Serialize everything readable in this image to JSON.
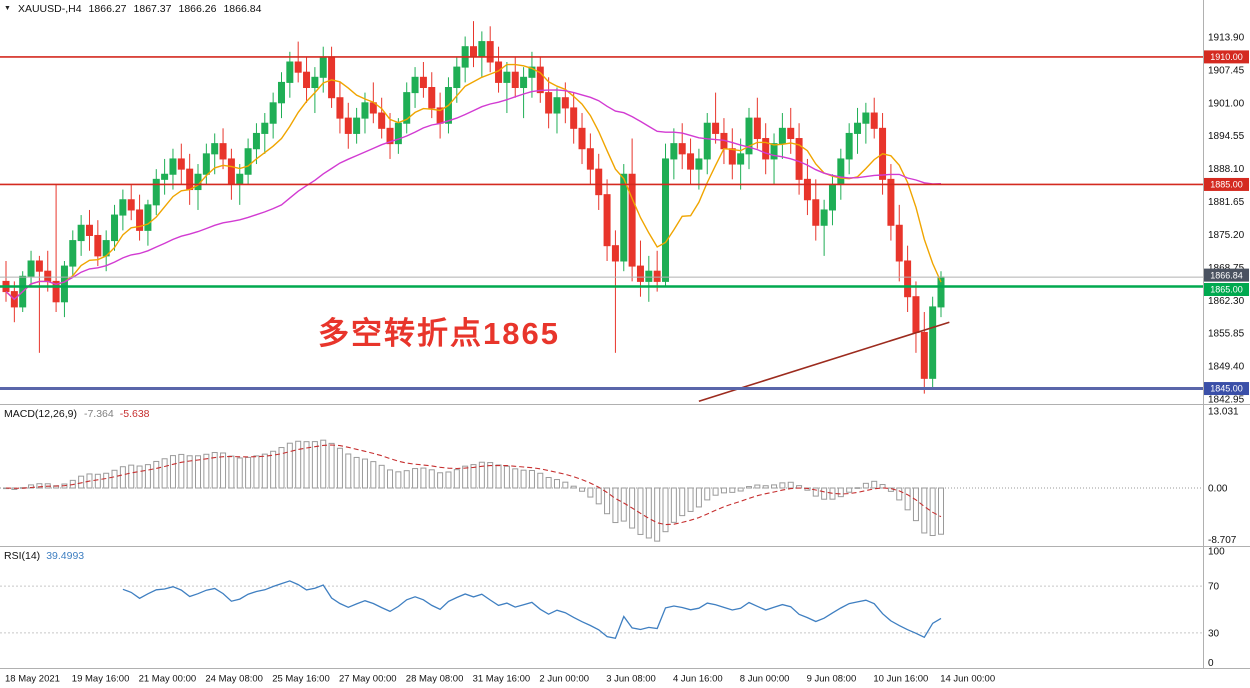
{
  "window": {
    "symbol_label": "XAUUSD-,H4",
    "open": "1866.27",
    "high": "1867.37",
    "low": "1866.26",
    "close": "1866.84"
  },
  "annotation": {
    "text": "多空转折点1865",
    "color": "#e8352b"
  },
  "chart_data": {
    "type": "candlestick",
    "symbol": "XAUUSD",
    "timeframe": "H4",
    "price_axis_range": [
      1842.95,
      1913.9
    ],
    "price_axis_labels": [
      "1913.90",
      "1907.45",
      "1901.00",
      "1894.55",
      "1888.10",
      "1881.65",
      "1875.20",
      "1868.75",
      "1862.30",
      "1855.85",
      "1849.40",
      "1842.95"
    ],
    "hlines": [
      {
        "price": 1910.0,
        "label": "1910.00",
        "color": "#d42a20",
        "width": 1.6,
        "tag_bg": "#d42a20",
        "tag_dy": 0
      },
      {
        "price": 1885.0,
        "label": "1885.00",
        "color": "#d42a20",
        "width": 1.6,
        "tag_bg": "#d42a20",
        "tag_dy": 0
      },
      {
        "price": 1865.0,
        "label": "1865.00",
        "color": "#00a94f",
        "width": 2.4,
        "tag_bg": "#00a94f",
        "tag_dy": 3
      },
      {
        "price": 1845.0,
        "label": "1845.00",
        "color": "#5a66aa",
        "width": 3.0,
        "tag_bg": "#3a4fa8",
        "tag_dy": 0
      }
    ],
    "current_price": {
      "value": 1866.84,
      "label": "1866.84",
      "tag_bg": "#4a5260"
    },
    "colors": {
      "up": "#1fae55",
      "down": "#e8352b",
      "ma_fast": "#f0a500",
      "ma_slow": "#d23bd2",
      "trend": "#9c2b1e",
      "macd_hist": "#9a9a9a",
      "macd_signal": "#c62f2f",
      "rsi": "#3f7fc1",
      "grid": "#b0b0b0",
      "current_line": "#b0b0b0"
    },
    "ma_lines": [
      {
        "name": "ma-fast",
        "period": 8,
        "color": "#f0a500"
      },
      {
        "name": "ma-slow",
        "period": 34,
        "color": "#d23bd2"
      }
    ],
    "trendline": {
      "from_index": 83,
      "from_price": 1842.5,
      "to_index": 113,
      "to_price": 1858.0,
      "color": "#9c2b1e"
    },
    "candles": [
      [
        1866,
        1870,
        1862,
        1864
      ],
      [
        1864,
        1866,
        1858,
        1861
      ],
      [
        1861,
        1868,
        1860,
        1867
      ],
      [
        1867,
        1872,
        1865,
        1870
      ],
      [
        1870,
        1871,
        1852,
        1868
      ],
      [
        1868,
        1872,
        1864,
        1866
      ],
      [
        1866,
        1885,
        1860,
        1862
      ],
      [
        1862,
        1870,
        1859,
        1869
      ],
      [
        1869,
        1876,
        1867,
        1874
      ],
      [
        1874,
        1879,
        1871,
        1877
      ],
      [
        1877,
        1880,
        1872,
        1875
      ],
      [
        1875,
        1878,
        1869,
        1871
      ],
      [
        1871,
        1876,
        1868,
        1874
      ],
      [
        1874,
        1881,
        1872,
        1879
      ],
      [
        1879,
        1884,
        1876,
        1882
      ],
      [
        1882,
        1885,
        1878,
        1880
      ],
      [
        1880,
        1883,
        1874,
        1876
      ],
      [
        1876,
        1882,
        1873,
        1881
      ],
      [
        1881,
        1888,
        1879,
        1886
      ],
      [
        1886,
        1890,
        1883,
        1887
      ],
      [
        1887,
        1892,
        1884,
        1890
      ],
      [
        1890,
        1893,
        1885,
        1888
      ],
      [
        1888,
        1891,
        1881,
        1884
      ],
      [
        1884,
        1889,
        1880,
        1887
      ],
      [
        1887,
        1893,
        1885,
        1891
      ],
      [
        1891,
        1895,
        1887,
        1893
      ],
      [
        1893,
        1896,
        1888,
        1890
      ],
      [
        1890,
        1892,
        1882,
        1885
      ],
      [
        1885,
        1889,
        1881,
        1887
      ],
      [
        1887,
        1894,
        1885,
        1892
      ],
      [
        1892,
        1897,
        1889,
        1895
      ],
      [
        1895,
        1899,
        1891,
        1897
      ],
      [
        1897,
        1903,
        1894,
        1901
      ],
      [
        1901,
        1907,
        1898,
        1905
      ],
      [
        1905,
        1911,
        1902,
        1909
      ],
      [
        1909,
        1913,
        1905,
        1907
      ],
      [
        1907,
        1910,
        1901,
        1904
      ],
      [
        1904,
        1908,
        1899,
        1906
      ],
      [
        1906,
        1912,
        1903,
        1910
      ],
      [
        1910,
        1912,
        1900,
        1902
      ],
      [
        1902,
        1905,
        1895,
        1898
      ],
      [
        1898,
        1901,
        1892,
        1895
      ],
      [
        1895,
        1900,
        1893,
        1898
      ],
      [
        1898,
        1903,
        1895,
        1901
      ],
      [
        1901,
        1905,
        1897,
        1899
      ],
      [
        1899,
        1902,
        1894,
        1896
      ],
      [
        1896,
        1899,
        1890,
        1893
      ],
      [
        1893,
        1898,
        1891,
        1897
      ],
      [
        1897,
        1905,
        1895,
        1903
      ],
      [
        1903,
        1908,
        1900,
        1906
      ],
      [
        1906,
        1909,
        1902,
        1904
      ],
      [
        1904,
        1907,
        1898,
        1900
      ],
      [
        1900,
        1903,
        1894,
        1897
      ],
      [
        1897,
        1906,
        1895,
        1904
      ],
      [
        1904,
        1910,
        1901,
        1908
      ],
      [
        1908,
        1914,
        1905,
        1912
      ],
      [
        1912,
        1917,
        1908,
        1910
      ],
      [
        1910,
        1915,
        1906,
        1913
      ],
      [
        1913,
        1916,
        1907,
        1909
      ],
      [
        1909,
        1912,
        1903,
        1905
      ],
      [
        1905,
        1909,
        1899,
        1907
      ],
      [
        1907,
        1910,
        1902,
        1904
      ],
      [
        1904,
        1908,
        1898,
        1906
      ],
      [
        1906,
        1911,
        1902,
        1908
      ],
      [
        1908,
        1910,
        1901,
        1903
      ],
      [
        1903,
        1906,
        1896,
        1899
      ],
      [
        1899,
        1904,
        1895,
        1902
      ],
      [
        1902,
        1905,
        1897,
        1900
      ],
      [
        1900,
        1903,
        1893,
        1896
      ],
      [
        1896,
        1899,
        1889,
        1892
      ],
      [
        1892,
        1895,
        1885,
        1888
      ],
      [
        1888,
        1891,
        1880,
        1883
      ],
      [
        1883,
        1886,
        1870,
        1873
      ],
      [
        1873,
        1876,
        1852,
        1870
      ],
      [
        1870,
        1889,
        1868,
        1887
      ],
      [
        1887,
        1894,
        1866,
        1869
      ],
      [
        1869,
        1874,
        1863,
        1866
      ],
      [
        1866,
        1871,
        1862,
        1868
      ],
      [
        1868,
        1872,
        1864,
        1866
      ],
      [
        1866,
        1893,
        1865,
        1890
      ],
      [
        1890,
        1896,
        1886,
        1893
      ],
      [
        1893,
        1897,
        1888,
        1891
      ],
      [
        1891,
        1894,
        1885,
        1888
      ],
      [
        1888,
        1892,
        1884,
        1890
      ],
      [
        1890,
        1899,
        1887,
        1897
      ],
      [
        1897,
        1903,
        1893,
        1895
      ],
      [
        1895,
        1898,
        1889,
        1892
      ],
      [
        1892,
        1896,
        1886,
        1889
      ],
      [
        1889,
        1894,
        1884,
        1891
      ],
      [
        1891,
        1900,
        1888,
        1898
      ],
      [
        1898,
        1902,
        1892,
        1894
      ],
      [
        1894,
        1897,
        1887,
        1890
      ],
      [
        1890,
        1895,
        1885,
        1893
      ],
      [
        1893,
        1899,
        1890,
        1896
      ],
      [
        1896,
        1900,
        1891,
        1894
      ],
      [
        1894,
        1897,
        1883,
        1886
      ],
      [
        1886,
        1890,
        1879,
        1882
      ],
      [
        1882,
        1886,
        1874,
        1877
      ],
      [
        1877,
        1882,
        1871,
        1880
      ],
      [
        1880,
        1887,
        1877,
        1885
      ],
      [
        1885,
        1892,
        1882,
        1890
      ],
      [
        1890,
        1897,
        1887,
        1895
      ],
      [
        1895,
        1900,
        1891,
        1897
      ],
      [
        1897,
        1901,
        1893,
        1899
      ],
      [
        1899,
        1902,
        1894,
        1896
      ],
      [
        1896,
        1899,
        1883,
        1886
      ],
      [
        1886,
        1889,
        1874,
        1877
      ],
      [
        1877,
        1881,
        1866,
        1870
      ],
      [
        1870,
        1873,
        1860,
        1863
      ],
      [
        1863,
        1866,
        1852,
        1856
      ],
      [
        1856,
        1860,
        1844,
        1847
      ],
      [
        1847,
        1863,
        1845,
        1861
      ],
      [
        1861,
        1868,
        1859,
        1866.84
      ]
    ],
    "macd": {
      "label": "MACD(12,26,9)",
      "params": [
        12,
        26,
        9
      ],
      "value_main": "-7.364",
      "value_signal": "-5.638",
      "axis_labels": [
        "13.031",
        "0.00",
        "-8.707"
      ],
      "axis_range": [
        -8.707,
        13.031
      ]
    },
    "rsi": {
      "label": "RSI(14)",
      "period": 14,
      "value_text": "39.4993",
      "axis_labels": [
        "100",
        "70",
        "30",
        "0"
      ],
      "levels": [
        70,
        30
      ]
    },
    "time_axis_labels": [
      "18 May 2021",
      "19 May 16:00",
      "21 May 00:00",
      "24 May 08:00",
      "25 May 16:00",
      "27 May 00:00",
      "28 May 08:00",
      "31 May 16:00",
      "2 Jun 00:00",
      "3 Jun 08:00",
      "4 Jun 16:00",
      "8 Jun 00:00",
      "9 Jun 08:00",
      "10 Jun 16:00",
      "14 Jun 00:00"
    ]
  }
}
